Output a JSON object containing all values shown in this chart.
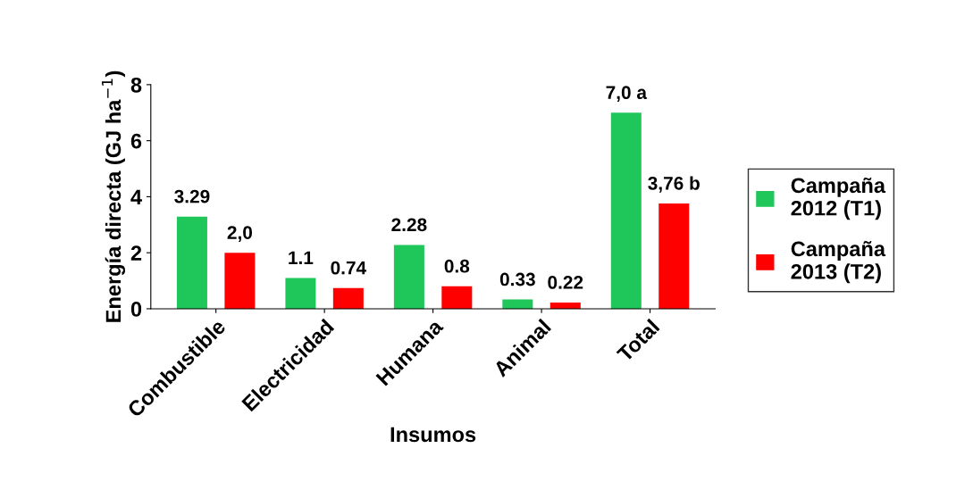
{
  "chart_data": {
    "type": "bar",
    "xlabel": "Insumos",
    "ylabel": "Energía directa (GJ ha$^{−1}$)",
    "categories": [
      "Combustible",
      "Electricidad",
      "Humana",
      "Animal",
      "Total"
    ],
    "series": [
      {
        "name": "Campaña\n2012 (T1)",
        "color": "#1fc65a",
        "values": [
          3.29,
          1.1,
          2.28,
          0.33,
          7.0
        ],
        "value_labels": [
          "3.29",
          "1.1",
          "2.28",
          "0.33",
          "7,0 a"
        ]
      },
      {
        "name": "Campaña\n2013 (T2)",
        "color": "#ff0000",
        "values": [
          2.0,
          0.74,
          0.8,
          0.22,
          3.76
        ],
        "value_labels": [
          "2,0",
          "0.74",
          "0.8",
          "0.22",
          "3,76 b"
        ]
      }
    ],
    "ylim": [
      0,
      8
    ],
    "yticks": [
      0,
      2,
      4,
      6,
      8
    ],
    "legend": "right",
    "grid": false
  }
}
